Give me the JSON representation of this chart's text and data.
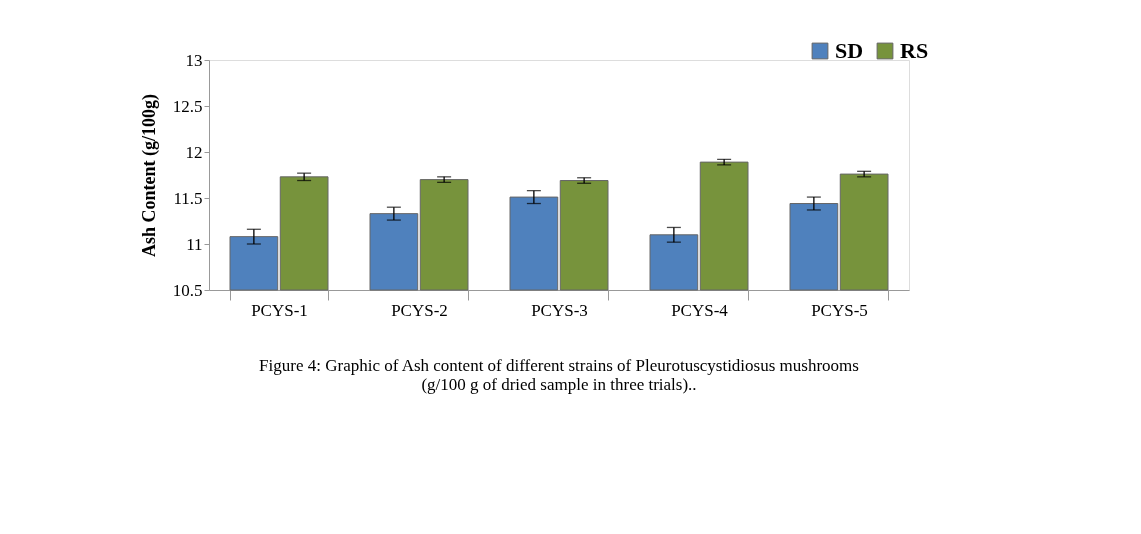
{
  "chart_data": {
    "type": "bar",
    "ylabel": "Ash Content  (g/100g)",
    "categories": [
      "PCYS-1",
      "PCYS-2",
      "PCYS-3",
      "PCYS-4",
      "PCYS-5"
    ],
    "series": [
      {
        "name": "SD",
        "color": "#4f81bd",
        "values": [
          11.08,
          11.33,
          11.51,
          11.1,
          11.44
        ],
        "errors": [
          0.08,
          0.07,
          0.07,
          0.08,
          0.07
        ]
      },
      {
        "name": "RS",
        "color": "#77933c",
        "values": [
          11.73,
          11.7,
          11.69,
          11.89,
          11.76
        ],
        "errors": [
          0.04,
          0.03,
          0.03,
          0.03,
          0.03
        ]
      }
    ],
    "ylim": [
      10.5,
      13
    ],
    "yticks": [
      10.5,
      11,
      11.5,
      12,
      12.5,
      13
    ],
    "grid": false,
    "legend": "top right",
    "annotations": [
      "Figure 4: Graphic of Ash content of different strains of Pleurotuscystidiosus mushrooms",
      "(g/100 g of dried sample in three trials).."
    ]
  }
}
